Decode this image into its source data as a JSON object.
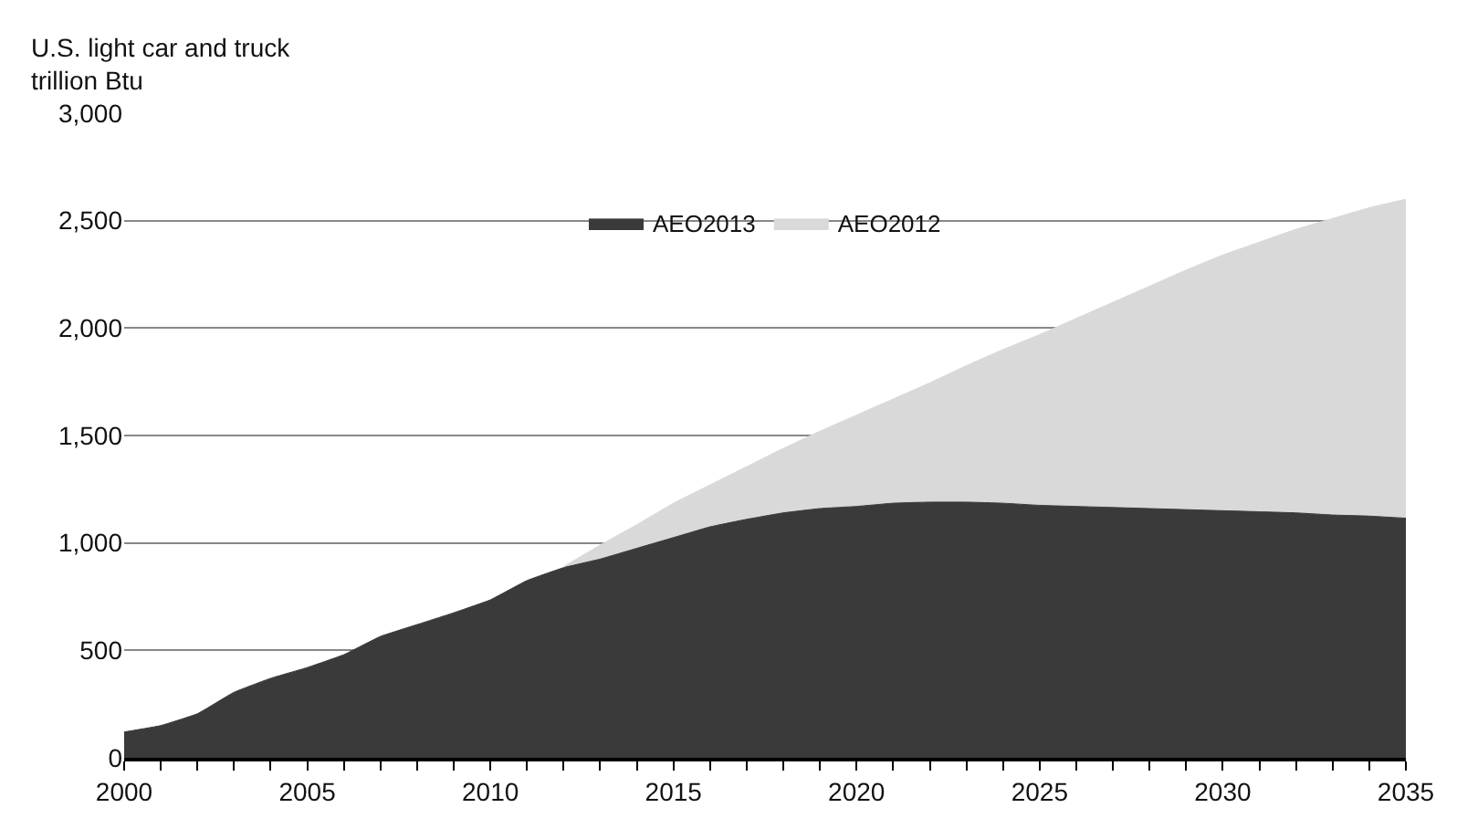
{
  "chart_data": {
    "type": "area",
    "ylabel": "U.S. light car and truck\ntrillion Btu",
    "x": [
      2000,
      2001,
      2002,
      2003,
      2004,
      2005,
      2006,
      2007,
      2008,
      2009,
      2010,
      2011,
      2012,
      2013,
      2014,
      2015,
      2016,
      2017,
      2018,
      2019,
      2020,
      2021,
      2022,
      2023,
      2024,
      2025,
      2026,
      2027,
      2028,
      2029,
      2030,
      2031,
      2032,
      2033,
      2034,
      2035
    ],
    "series": [
      {
        "name": "AEO2012",
        "color": "#d9d9d9",
        "values": [
          null,
          null,
          null,
          null,
          null,
          null,
          null,
          null,
          null,
          null,
          null,
          null,
          890,
          990,
          1085,
          1185,
          1270,
          1355,
          1440,
          1520,
          1595,
          1670,
          1745,
          1825,
          1900,
          1970,
          2045,
          2120,
          2195,
          2270,
          2340,
          2400,
          2460,
          2510,
          2560,
          2600
        ]
      },
      {
        "name": "AEO2013",
        "color": "#3a3a3a",
        "values": [
          120,
          150,
          205,
          305,
          370,
          420,
          480,
          565,
          620,
          675,
          735,
          825,
          885,
          925,
          975,
          1025,
          1075,
          1110,
          1140,
          1160,
          1170,
          1185,
          1190,
          1190,
          1185,
          1175,
          1170,
          1165,
          1160,
          1155,
          1150,
          1145,
          1140,
          1130,
          1125,
          1115
        ]
      }
    ],
    "xlim": [
      2000,
      2035
    ],
    "xticks": [
      2000,
      {
        "value": 2001,
        "label": null
      },
      {
        "value": 2002,
        "label": null
      },
      {
        "value": 2003,
        "label": null
      },
      {
        "value": 2004,
        "label": null
      },
      2005,
      {
        "value": 2006,
        "label": null
      },
      {
        "value": 2007,
        "label": null
      },
      {
        "value": 2008,
        "label": null
      },
      {
        "value": 2009,
        "label": null
      },
      2010,
      {
        "value": 2011,
        "label": null
      },
      {
        "value": 2012,
        "label": null
      },
      {
        "value": 2013,
        "label": null
      },
      {
        "value": 2014,
        "label": null
      },
      2015,
      {
        "value": 2016,
        "label": null
      },
      {
        "value": 2017,
        "label": null
      },
      {
        "value": 2018,
        "label": null
      },
      {
        "value": 2019,
        "label": null
      },
      2020,
      {
        "value": 2021,
        "label": null
      },
      {
        "value": 2022,
        "label": null
      },
      {
        "value": 2023,
        "label": null
      },
      {
        "value": 2024,
        "label": null
      },
      2025,
      {
        "value": 2026,
        "label": null
      },
      {
        "value": 2027,
        "label": null
      },
      {
        "value": 2028,
        "label": null
      },
      {
        "value": 2029,
        "label": null
      },
      2030,
      {
        "value": 2031,
        "label": null
      },
      {
        "value": 2032,
        "label": null
      },
      {
        "value": 2033,
        "label": null
      },
      {
        "value": 2034,
        "label": null
      },
      2035
    ],
    "ylim": [
      0,
      3000
    ],
    "yticks": [
      0,
      500,
      {
        "value": 1000,
        "label": "1,000"
      },
      {
        "value": 1500,
        "label": "1,500"
      },
      {
        "value": 2000,
        "label": "2,000"
      },
      {
        "value": 2500,
        "label": "2,500"
      },
      {
        "value": 3000,
        "label": "3,000"
      }
    ],
    "grid": "y",
    "legend": "top",
    "marker": "none"
  }
}
